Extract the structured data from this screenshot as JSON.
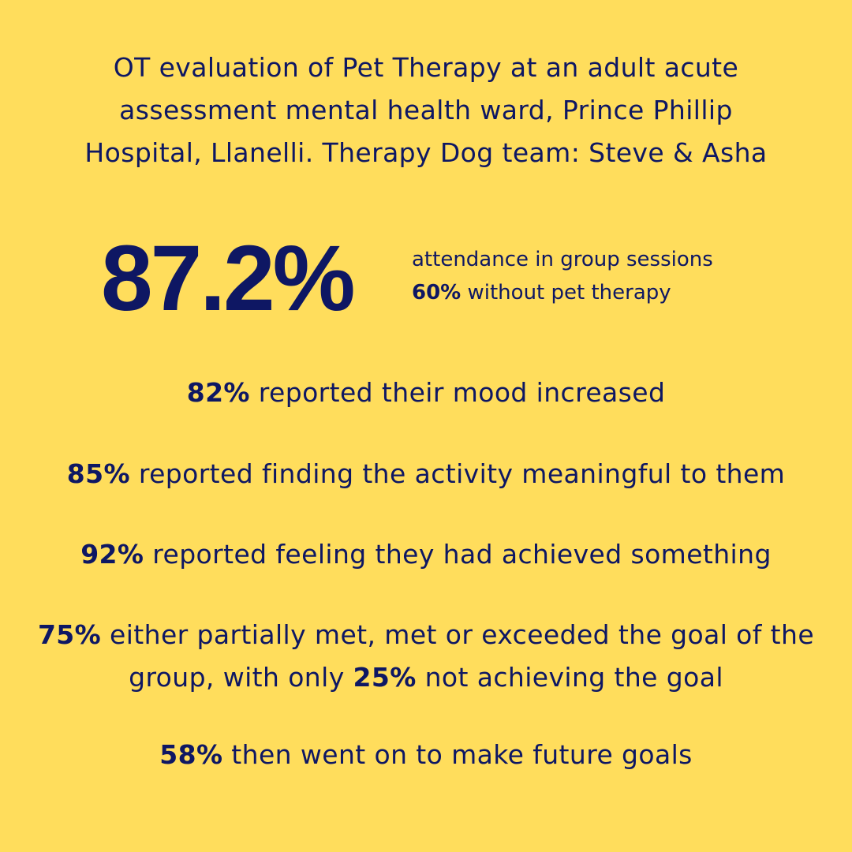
{
  "title": {
    "line1": "OT evaluation of Pet Therapy at an adult acute",
    "line2": "assessment mental health ward, Prince Phillip",
    "line3": "Hospital, Llanelli. Therapy Dog team: Steve & Asha"
  },
  "hero": {
    "value": "87.2%",
    "line1": "attendance in group sessions",
    "line2_pct": "60%",
    "line2_text": " without pet therapy"
  },
  "stats": [
    {
      "pct": "82%",
      "text": " reported their mood increased"
    },
    {
      "pct": "85%",
      "text": " reported finding the activity meaningful to them"
    },
    {
      "pct": "92%",
      "text": " reported feeling they had achieved something"
    },
    {
      "pct": "75%",
      "text_a": " either partially met, met or exceeded the goal of the",
      "text_b": "group, with only ",
      "pct2": "25%",
      "text_c": " not achieving the goal"
    },
    {
      "pct": "58%",
      "text": " then went on to make future goals"
    }
  ],
  "colors": {
    "background": "#FFDD5C",
    "text": "#0E1763"
  }
}
